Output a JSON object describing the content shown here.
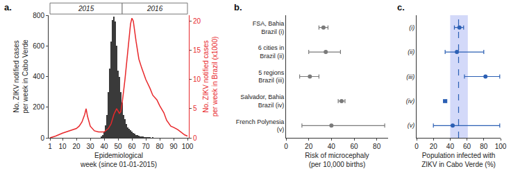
{
  "chart_data": [
    {
      "type": "bar",
      "panel_label": "a.",
      "x_label": "Epidemiological\nweek (since 01-01-2015)",
      "y_label": "No. ZIKV notified cases\nper week in Cabo Verde",
      "y2_label": "No. ZIKV notified cases\nper week in Brazil (x1000)",
      "xlim": [
        0,
        101
      ],
      "xticks": [
        1,
        10,
        20,
        30,
        40,
        50,
        60,
        70,
        80,
        90,
        100
      ],
      "ylim": [
        0,
        800
      ],
      "yticks": [
        0,
        200,
        400,
        600,
        800
      ],
      "y2lim": [
        0,
        21
      ],
      "y2ticks": [
        0,
        5,
        10,
        15,
        20
      ],
      "grid": false,
      "year_labels": [
        {
          "text": "2015",
          "start": 1,
          "end": 53
        },
        {
          "text": "2016",
          "start": 53,
          "end": 100
        }
      ],
      "series": [
        {
          "type": "bar",
          "color": "#3a3a3a",
          "x": [
            38,
            39,
            40,
            41,
            42,
            43,
            44,
            45,
            46,
            47,
            48,
            49,
            50,
            51,
            52,
            53,
            54,
            55,
            56,
            57,
            58,
            59,
            60,
            61,
            62,
            63,
            64,
            65,
            66,
            67,
            68,
            69,
            70,
            71,
            72,
            73,
            74,
            75
          ],
          "values": [
            10,
            20,
            40,
            80,
            150,
            300,
            450,
            630,
            770,
            790,
            760,
            600,
            440,
            400,
            300,
            230,
            150,
            120,
            90,
            70,
            60,
            50,
            40,
            30,
            25,
            20,
            20,
            15,
            10,
            10,
            8,
            5,
            5,
            4,
            3,
            3,
            2,
            5
          ]
        },
        {
          "type": "line",
          "axis": "y2",
          "color": "#e8282b",
          "x": [
            1,
            5,
            10,
            15,
            20,
            22,
            24,
            26,
            27,
            28,
            30,
            33,
            36,
            40,
            43,
            45,
            47,
            49,
            51,
            52,
            53,
            55,
            57,
            59,
            60,
            61,
            63,
            65,
            67,
            70,
            73,
            75,
            78,
            80,
            83,
            85,
            88,
            90,
            93,
            95,
            98,
            100
          ],
          "values": [
            0,
            0.3,
            0.8,
            1.2,
            1.6,
            2,
            2.7,
            4,
            5,
            3.7,
            2,
            1.2,
            1,
            1,
            1.6,
            2.4,
            4,
            5,
            4.2,
            4.5,
            6,
            10,
            15,
            19.5,
            20.5,
            20,
            16.5,
            13.5,
            12,
            10,
            8.5,
            7.3,
            6.5,
            5.5,
            4.3,
            3,
            2,
            1.8,
            1.4,
            1,
            0.5,
            0.3
          ]
        }
      ]
    },
    {
      "type": "scatter",
      "orientation": "horizontal",
      "panel_label": "b.",
      "x_label": "Risk of microcephaly\n(per 10,000 births)",
      "categories": [
        "FSA, Bahia\nBrazil (i)",
        "6 cities in\nBrazil (ii)",
        "5 regions\nBrazil (iii)",
        "Salvador, Bahia\nBrazil (iv)",
        "French Polynesia\n(v)"
      ],
      "values": [
        33,
        35,
        21,
        49,
        40
      ],
      "lower": [
        29,
        20,
        12,
        46,
        14
      ],
      "upper": [
        37,
        48,
        29,
        52,
        87
      ],
      "color": "#7a7a7a",
      "marker": "circle",
      "xlim": [
        0,
        90
      ],
      "xticks": [
        0,
        20,
        40,
        60,
        80
      ],
      "grid": false
    },
    {
      "type": "scatter",
      "orientation": "horizontal",
      "panel_label": "c.",
      "x_label": "Population infected with\nZIKV in Cabo Verde (%)",
      "categories": [
        "(i)",
        "(ii)",
        "(iii)",
        "(iv)",
        "(v)"
      ],
      "values": [
        51,
        48,
        82,
        34,
        43
      ],
      "lower": [
        45,
        34,
        57,
        32,
        20
      ],
      "upper": [
        56,
        80,
        99,
        36,
        99
      ],
      "reference": 50,
      "reference_band": [
        40,
        61
      ],
      "color": "#2b5fb4",
      "marker": "circle",
      "xlim": [
        0,
        100
      ],
      "xticks": [
        0,
        20,
        40,
        60,
        80,
        100
      ],
      "grid": false
    }
  ]
}
